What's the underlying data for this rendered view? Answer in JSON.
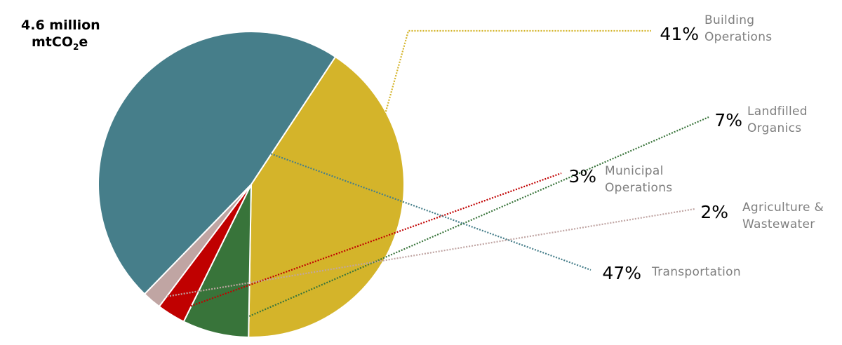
{
  "chart_data": {
    "type": "pie",
    "title_lines": [
      "4.6 million",
      "mtCO",
      "2",
      "e"
    ],
    "slices": [
      {
        "category": "Building Operations",
        "label_lines": [
          "Building",
          "Operations"
        ],
        "value": 41,
        "value_label": "41%",
        "color": "#D4B42A"
      },
      {
        "category": "Landfilled Organics",
        "label_lines": [
          "Landfilled",
          "Organics"
        ],
        "value": 7,
        "value_label": "7%",
        "color": "#38743A"
      },
      {
        "category": "Municipal Operations",
        "label_lines": [
          "Municipal",
          "Operations"
        ],
        "value": 3,
        "value_label": "3%",
        "color": "#C00000"
      },
      {
        "category": "Agriculture & Wastewater",
        "label_lines": [
          "Agriculture &",
          "Wastewater"
        ],
        "value": 2,
        "value_label": "2%",
        "color": "#C0A5A3"
      },
      {
        "category": "Transportation",
        "label_lines": [
          "Transportation"
        ],
        "value": 47,
        "value_label": "47%",
        "color": "#467E8A"
      }
    ],
    "legend": "none"
  }
}
